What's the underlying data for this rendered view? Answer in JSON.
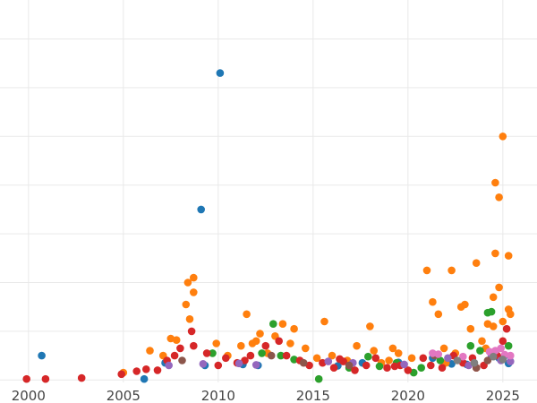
{
  "chart_data": {
    "type": "scatter",
    "title": "",
    "xlabel": "",
    "ylabel": "",
    "xlim": [
      1998.5,
      2026.8
    ],
    "ylim": [
      -0.5,
      78
    ],
    "x_ticks": [
      2000,
      2005,
      2010,
      2015,
      2020,
      2025
    ],
    "x_tick_labels": [
      "2000",
      "2005",
      "2010",
      "2015",
      "2020",
      "2025"
    ],
    "y_gridlines": [
      0,
      10,
      20,
      30,
      40,
      50,
      60,
      70
    ],
    "y_tick_labels_visible": false,
    "grid": true,
    "legend": "none",
    "series": [
      {
        "color": "#1f77b4",
        "points": [
          [
            2010.1,
            63.0
          ],
          [
            2009.1,
            35.0
          ],
          [
            2000.7,
            5.0
          ],
          [
            2006.1,
            0.2
          ],
          [
            2009.3,
            3.0
          ],
          [
            2017.6,
            3.5
          ],
          [
            2021.3,
            4.5
          ],
          [
            2023.1,
            3.2
          ],
          [
            2024.6,
            5.5
          ],
          [
            2025.1,
            5.0
          ],
          [
            2011.3,
            3.2
          ],
          [
            2019.5,
            3.6
          ],
          [
            2024.8,
            4.5
          ],
          [
            2007.2,
            3.5
          ],
          [
            2012.1,
            3.0
          ],
          [
            2022.3,
            3.3
          ],
          [
            2016.3,
            2.9
          ],
          [
            2025.3,
            3.4
          ]
        ]
      },
      {
        "color": "#ff7f0e",
        "points": [
          [
            2025.0,
            50.0
          ],
          [
            2024.6,
            40.5
          ],
          [
            2024.8,
            37.5
          ],
          [
            2021.0,
            22.5
          ],
          [
            2022.3,
            22.5
          ],
          [
            2023.6,
            24.0
          ],
          [
            2024.6,
            26.0
          ],
          [
            2025.3,
            25.5
          ],
          [
            2024.8,
            19.0
          ],
          [
            2024.5,
            17.0
          ],
          [
            2021.3,
            16.0
          ],
          [
            2023.0,
            15.5
          ],
          [
            2022.8,
            15.0
          ],
          [
            2021.6,
            13.5
          ],
          [
            2025.3,
            14.5
          ],
          [
            2025.4,
            13.5
          ],
          [
            2025.0,
            12.0
          ],
          [
            2024.2,
            11.5
          ],
          [
            2023.3,
            10.5
          ],
          [
            2024.5,
            11.0
          ],
          [
            2008.7,
            21.0
          ],
          [
            2008.4,
            20.0
          ],
          [
            2008.7,
            18.0
          ],
          [
            2008.3,
            15.5
          ],
          [
            2008.5,
            12.5
          ],
          [
            2011.5,
            13.5
          ],
          [
            2013.4,
            11.5
          ],
          [
            2014.0,
            10.5
          ],
          [
            2015.6,
            12.0
          ],
          [
            2018.0,
            11.0
          ],
          [
            2006.4,
            6.0
          ],
          [
            2007.5,
            8.5
          ],
          [
            2007.8,
            8.2
          ],
          [
            2009.9,
            7.5
          ],
          [
            2011.2,
            7.0
          ],
          [
            2011.8,
            7.5
          ],
          [
            2012.2,
            9.5
          ],
          [
            2012.0,
            8.0
          ],
          [
            2013.8,
            7.5
          ],
          [
            2014.6,
            6.5
          ],
          [
            2017.3,
            7.0
          ],
          [
            2018.2,
            6.0
          ],
          [
            2019.2,
            6.5
          ],
          [
            2019.5,
            5.5
          ],
          [
            2020.2,
            4.5
          ],
          [
            2021.9,
            6.5
          ],
          [
            2022.5,
            5.5
          ],
          [
            2023.9,
            8.0
          ],
          [
            2024.1,
            6.5
          ],
          [
            2010.5,
            5.0
          ],
          [
            2012.6,
            5.5
          ],
          [
            2015.2,
            4.5
          ],
          [
            2016.8,
            4.0
          ],
          [
            2018.6,
            3.5
          ],
          [
            2013.0,
            9.0
          ],
          [
            2019.0,
            4.0
          ],
          [
            2022.0,
            3.5
          ],
          [
            2016.0,
            5.0
          ],
          [
            2005.0,
            1.5
          ],
          [
            2007.1,
            5.0
          ]
        ]
      },
      {
        "color": "#2ca02c",
        "points": [
          [
            2012.9,
            11.5
          ],
          [
            2024.2,
            13.8
          ],
          [
            2024.4,
            14.0
          ],
          [
            2015.3,
            0.2
          ],
          [
            2009.7,
            5.5
          ],
          [
            2013.3,
            5.0
          ],
          [
            2017.9,
            4.8
          ],
          [
            2019.4,
            3.5
          ],
          [
            2020.3,
            1.5
          ],
          [
            2020.7,
            2.5
          ],
          [
            2021.7,
            4.0
          ],
          [
            2023.3,
            7.0
          ],
          [
            2023.8,
            6.0
          ],
          [
            2025.3,
            7.0
          ],
          [
            2016.9,
            2.5
          ],
          [
            2018.5,
            2.8
          ],
          [
            2012.3,
            5.5
          ],
          [
            2014.0,
            4.2
          ]
        ]
      },
      {
        "color": "#d62728",
        "points": [
          [
            1999.9,
            0.2
          ],
          [
            2000.9,
            0.2
          ],
          [
            2002.8,
            0.4
          ],
          [
            2004.9,
            1.2
          ],
          [
            2005.7,
            1.8
          ],
          [
            2006.2,
            2.2
          ],
          [
            2006.8,
            2.0
          ],
          [
            2007.3,
            4.0
          ],
          [
            2007.7,
            5.0
          ],
          [
            2008.0,
            6.5
          ],
          [
            2008.6,
            10.0
          ],
          [
            2008.7,
            7.0
          ],
          [
            2009.4,
            5.5
          ],
          [
            2010.0,
            3.0
          ],
          [
            2010.4,
            4.5
          ],
          [
            2011.0,
            3.5
          ],
          [
            2011.7,
            5.0
          ],
          [
            2012.5,
            7.0
          ],
          [
            2013.2,
            8.0
          ],
          [
            2013.6,
            5.0
          ],
          [
            2014.3,
            4.0
          ],
          [
            2014.8,
            3.0
          ],
          [
            2015.5,
            3.5
          ],
          [
            2016.1,
            2.5
          ],
          [
            2016.6,
            3.8
          ],
          [
            2017.2,
            2.0
          ],
          [
            2017.8,
            3.0
          ],
          [
            2018.3,
            4.5
          ],
          [
            2018.9,
            2.5
          ],
          [
            2019.6,
            3.0
          ],
          [
            2020.0,
            2.0
          ],
          [
            2020.8,
            4.5
          ],
          [
            2021.2,
            3.0
          ],
          [
            2021.8,
            2.5
          ],
          [
            2022.4,
            5.0
          ],
          [
            2022.9,
            3.5
          ],
          [
            2023.4,
            4.5
          ],
          [
            2024.0,
            3.0
          ],
          [
            2024.7,
            5.0
          ],
          [
            2025.2,
            10.5
          ],
          [
            2025.0,
            8.0
          ],
          [
            2016.4,
            4.3
          ],
          [
            2019.3,
            2.8
          ],
          [
            2011.4,
            4.0
          ],
          [
            2023.6,
            2.5
          ]
        ]
      },
      {
        "color": "#9467bd",
        "points": [
          [
            2007.4,
            3.0
          ],
          [
            2009.2,
            3.3
          ],
          [
            2011.1,
            3.4
          ],
          [
            2012.0,
            3.1
          ],
          [
            2015.8,
            3.8
          ],
          [
            2017.1,
            3.5
          ],
          [
            2019.8,
            3.2
          ],
          [
            2022.1,
            4.5
          ],
          [
            2023.2,
            3.0
          ],
          [
            2024.4,
            5.0
          ],
          [
            2024.9,
            4.0
          ],
          [
            2025.4,
            3.8
          ]
        ]
      },
      {
        "color": "#8c564b",
        "points": [
          [
            2023.6,
            2.5
          ],
          [
            2024.2,
            4.0
          ],
          [
            2008.1,
            4.0
          ],
          [
            2012.8,
            5.0
          ],
          [
            2016.9,
            3.0
          ],
          [
            2021.4,
            5.0
          ],
          [
            2014.5,
            3.5
          ]
        ]
      },
      {
        "color": "#e377c2",
        "points": [
          [
            2021.3,
            5.5
          ],
          [
            2024.3,
            5.8
          ],
          [
            2024.6,
            6.0
          ],
          [
            2025.1,
            5.2
          ],
          [
            2024.9,
            6.5
          ],
          [
            2025.4,
            5.0
          ],
          [
            2022.9,
            4.8
          ],
          [
            2021.6,
            5.3
          ]
        ]
      },
      {
        "color": "#7f7f7f",
        "points": [
          [
            2024.5,
            4.8
          ],
          [
            2023.5,
            3.5
          ],
          [
            2025.0,
            4.2
          ],
          [
            2022.6,
            4.0
          ]
        ]
      }
    ]
  }
}
